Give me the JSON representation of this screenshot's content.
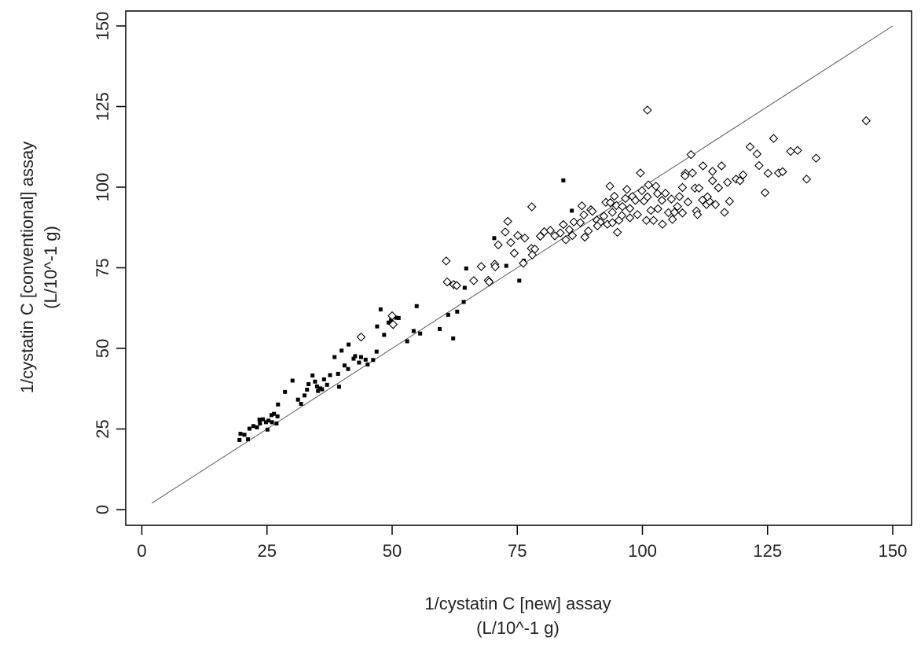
{
  "chart_data": {
    "type": "scatter",
    "xlabel": [
      "1/cystatin C [new] assay",
      "(L/10^-1 g)"
    ],
    "ylabel": [
      "1/cystatin C [conventional] assay",
      "(L/10^-1 g)"
    ],
    "xlim": [
      0,
      150
    ],
    "ylim": [
      0,
      150
    ],
    "x_ticks": [
      0,
      25,
      50,
      75,
      100,
      125,
      150
    ],
    "y_ticks": [
      0,
      25,
      50,
      75,
      100,
      125,
      150
    ],
    "grid": false,
    "legend": "none",
    "identity_line": {
      "x": [
        2,
        150
      ],
      "y": [
        2,
        150
      ]
    },
    "series": [
      {
        "marker": "filled-square",
        "color": "#000000",
        "points": [
          [
            19.5,
            21.6
          ],
          [
            19.7,
            23.5
          ],
          [
            20.5,
            23.2
          ],
          [
            21.2,
            21.8
          ],
          [
            21.5,
            25.1
          ],
          [
            22.3,
            25.9
          ],
          [
            23.0,
            25.5
          ],
          [
            23.5,
            27.9
          ],
          [
            24.2,
            28.0
          ],
          [
            24.8,
            27.1
          ],
          [
            25.3,
            27.6
          ],
          [
            25.9,
            29.3
          ],
          [
            26.4,
            29.7
          ],
          [
            26.9,
            26.7
          ],
          [
            27.2,
            32.6
          ],
          [
            28.6,
            36.5
          ],
          [
            30.1,
            40.0
          ],
          [
            31.2,
            34.1
          ],
          [
            31.8,
            32.8
          ],
          [
            32.5,
            35.4
          ],
          [
            33.3,
            38.9
          ],
          [
            34.1,
            41.6
          ],
          [
            34.6,
            39.7
          ],
          [
            35.0,
            38.2
          ],
          [
            35.6,
            37.6
          ],
          [
            36.4,
            40.4
          ],
          [
            37.0,
            38.7
          ],
          [
            37.6,
            41.7
          ],
          [
            38.5,
            47.3
          ],
          [
            39.2,
            42.1
          ],
          [
            39.9,
            49.3
          ],
          [
            40.5,
            44.7
          ],
          [
            41.3,
            51.2
          ],
          [
            42.6,
            47.6
          ],
          [
            43.4,
            45.6
          ],
          [
            44.7,
            46.5
          ],
          [
            46.2,
            46.4
          ],
          [
            47.0,
            56.8
          ],
          [
            47.7,
            62.1
          ],
          [
            48.4,
            54.2
          ],
          [
            49.8,
            58.9
          ],
          [
            50.8,
            59.5
          ],
          [
            51.3,
            59.4
          ],
          [
            53.0,
            52.2
          ],
          [
            54.3,
            55.4
          ],
          [
            54.9,
            63.1
          ],
          [
            55.6,
            54.6
          ],
          [
            59.5,
            56.0
          ],
          [
            61.2,
            60.4
          ],
          [
            62.2,
            53.1
          ],
          [
            63.0,
            61.4
          ],
          [
            64.3,
            64.4
          ],
          [
            64.5,
            68.8
          ],
          [
            64.8,
            74.8
          ],
          [
            70.4,
            84.2
          ],
          [
            72.8,
            75.6
          ],
          [
            75.4,
            71.0
          ],
          [
            76.3,
            77.2
          ],
          [
            84.2,
            102.1
          ],
          [
            85.9,
            92.7
          ],
          [
            23.6,
            26.7
          ],
          [
            25.1,
            24.8
          ],
          [
            26.0,
            27.1
          ],
          [
            27.1,
            28.9
          ],
          [
            33.0,
            37.2
          ],
          [
            35.2,
            36.8
          ],
          [
            36.0,
            37.3
          ],
          [
            39.4,
            38.1
          ],
          [
            41.2,
            43.6
          ],
          [
            42.3,
            46.8
          ],
          [
            43.8,
            47.3
          ],
          [
            45.1,
            45.0
          ],
          [
            46.9,
            49.0
          ],
          [
            49.3,
            58.0
          ]
        ]
      },
      {
        "marker": "open-diamond",
        "color": "#000000",
        "points": [
          [
            43.8,
            53.5
          ],
          [
            50.0,
            60.1
          ],
          [
            50.2,
            57.4
          ],
          [
            60.8,
            77.1
          ],
          [
            61.0,
            70.6
          ],
          [
            62.3,
            69.8
          ],
          [
            62.9,
            69.5
          ],
          [
            66.3,
            71.0
          ],
          [
            67.8,
            75.4
          ],
          [
            69.2,
            71.1
          ],
          [
            69.4,
            70.6
          ],
          [
            70.5,
            76.1
          ],
          [
            70.6,
            75.3
          ],
          [
            71.2,
            82.1
          ],
          [
            72.6,
            86.1
          ],
          [
            73.1,
            89.4
          ],
          [
            73.7,
            82.8
          ],
          [
            74.4,
            79.5
          ],
          [
            75.1,
            85.0
          ],
          [
            76.2,
            76.4
          ],
          [
            76.5,
            84.2
          ],
          [
            77.8,
            81.0
          ],
          [
            77.9,
            93.9
          ],
          [
            78.0,
            79.0
          ],
          [
            78.5,
            80.8
          ],
          [
            79.6,
            84.8
          ],
          [
            80.4,
            86.2
          ],
          [
            81.6,
            86.6
          ],
          [
            82.5,
            84.9
          ],
          [
            83.6,
            85.8
          ],
          [
            84.2,
            88.4
          ],
          [
            84.7,
            83.7
          ],
          [
            85.4,
            86.8
          ],
          [
            86.3,
            89.2
          ],
          [
            87.6,
            89.0
          ],
          [
            87.9,
            94.2
          ],
          [
            88.3,
            91.4
          ],
          [
            89.2,
            86.4
          ],
          [
            89.7,
            93.0
          ],
          [
            90.9,
            89.8
          ],
          [
            91.6,
            89.1
          ],
          [
            92.3,
            91.0
          ],
          [
            92.7,
            95.3
          ],
          [
            93.5,
            100.3
          ],
          [
            93.6,
            95.2
          ],
          [
            94.0,
            92.2
          ],
          [
            94.4,
            97.2
          ],
          [
            94.8,
            94.3
          ],
          [
            95.3,
            89.7
          ],
          [
            95.9,
            91.2
          ],
          [
            96.6,
            96.5
          ],
          [
            96.9,
            99.3
          ],
          [
            97.5,
            93.4
          ],
          [
            98.0,
            97.1
          ],
          [
            98.6,
            95.9
          ],
          [
            99.6,
            104.4
          ],
          [
            99.9,
            98.9
          ],
          [
            100.3,
            95.7
          ],
          [
            100.8,
            89.7
          ],
          [
            101.0,
            123.9
          ],
          [
            101.2,
            100.7
          ],
          [
            101.7,
            92.8
          ],
          [
            102.2,
            89.7
          ],
          [
            102.7,
            100.3
          ],
          [
            103.1,
            93.3
          ],
          [
            103.9,
            95.9
          ],
          [
            104.6,
            98.1
          ],
          [
            105.2,
            92.1
          ],
          [
            105.8,
            96.3
          ],
          [
            106.4,
            92.2
          ],
          [
            107.0,
            94.0
          ],
          [
            107.4,
            97.1
          ],
          [
            108.0,
            99.9
          ],
          [
            108.6,
            104.3
          ],
          [
            109.1,
            95.4
          ],
          [
            109.7,
            110.1
          ],
          [
            110.0,
            104.4
          ],
          [
            110.5,
            99.7
          ],
          [
            110.8,
            92.6
          ],
          [
            111.3,
            99.7
          ],
          [
            112.1,
            106.6
          ],
          [
            112.8,
            94.6
          ],
          [
            113.4,
            95.6
          ],
          [
            114.0,
            104.9
          ],
          [
            114.6,
            94.6
          ],
          [
            115.2,
            99.8
          ],
          [
            115.8,
            106.6
          ],
          [
            116.4,
            92.2
          ],
          [
            117.4,
            95.6
          ],
          [
            118.7,
            102.5
          ],
          [
            120.1,
            103.8
          ],
          [
            121.5,
            112.5
          ],
          [
            122.9,
            110.3
          ],
          [
            123.3,
            106.7
          ],
          [
            124.5,
            98.3
          ],
          [
            125.1,
            104.3
          ],
          [
            126.2,
            115.1
          ],
          [
            127.2,
            104.4
          ],
          [
            128.0,
            104.8
          ],
          [
            129.6,
            111.1
          ],
          [
            131.0,
            111.4
          ],
          [
            132.8,
            102.5
          ],
          [
            134.7,
            109.0
          ],
          [
            144.7,
            120.6
          ],
          [
            91.0,
            88.0
          ],
          [
            93.0,
            88.5
          ],
          [
            95.0,
            86.0
          ],
          [
            97.5,
            90.5
          ],
          [
            99.0,
            91.5
          ],
          [
            104.0,
            88.5
          ],
          [
            106.0,
            90.0
          ],
          [
            108.0,
            92.0
          ],
          [
            112.0,
            96.0
          ],
          [
            114.0,
            102.0
          ],
          [
            117.0,
            101.5
          ],
          [
            119.5,
            102.0
          ],
          [
            86.0,
            85.0
          ],
          [
            88.5,
            84.5
          ],
          [
            90.0,
            92.5
          ],
          [
            94.0,
            89.0
          ],
          [
            96.0,
            94.0
          ],
          [
            101.0,
            97.0
          ],
          [
            103.0,
            98.0
          ],
          [
            108.5,
            103.5
          ],
          [
            111.0,
            91.5
          ],
          [
            113.0,
            97.0
          ]
        ]
      }
    ]
  }
}
